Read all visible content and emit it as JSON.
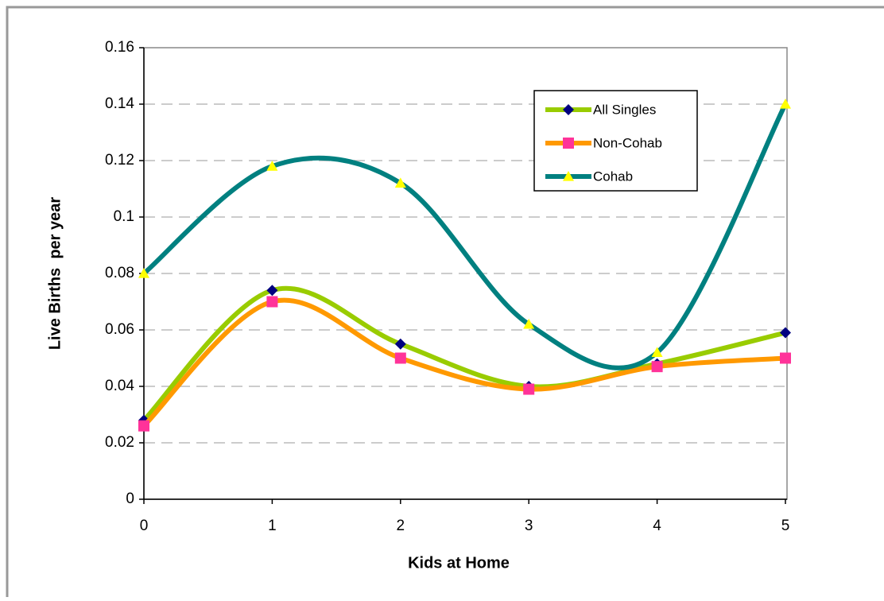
{
  "chart_data": {
    "type": "line",
    "x": [
      0,
      1,
      2,
      3,
      4,
      5
    ],
    "xlim": [
      0,
      5
    ],
    "xticks": [
      0,
      1,
      2,
      3,
      4,
      5
    ],
    "ylim": [
      0,
      0.16
    ],
    "yticks": [
      0,
      0.02,
      0.04,
      0.06,
      0.08,
      0.1,
      0.12,
      0.14,
      0.16
    ],
    "xlabel": "Kids at Home",
    "ylabel": "Live Births  per year",
    "grid": true,
    "smooth": true,
    "legend": "upper right",
    "series": [
      {
        "name": "All Singles",
        "color": "#99cc00",
        "marker": "diamond",
        "marker_color": "#000080",
        "values": [
          0.028,
          0.074,
          0.055,
          0.04,
          0.048,
          0.059
        ]
      },
      {
        "name": "Non-Cohab",
        "color": "#ff9900",
        "marker": "square",
        "marker_color": "#ff3399",
        "values": [
          0.026,
          0.07,
          0.05,
          0.039,
          0.047,
          0.05
        ]
      },
      {
        "name": "Cohab",
        "color": "#008080",
        "marker": "triangle",
        "marker_color": "#ffff00",
        "values": [
          0.08,
          0.118,
          0.112,
          0.062,
          0.052,
          0.14
        ]
      }
    ]
  }
}
